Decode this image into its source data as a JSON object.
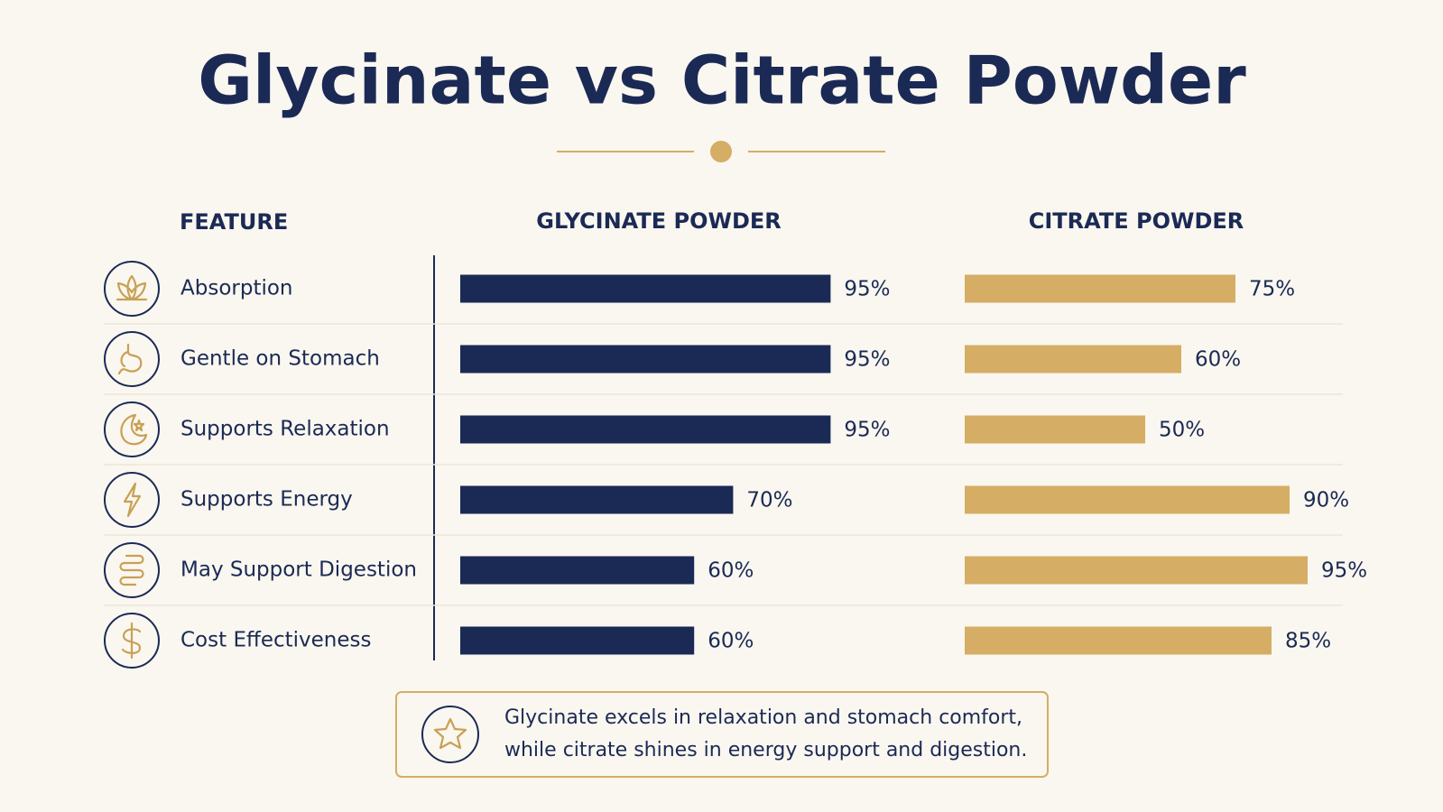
{
  "chart_data": {
    "type": "bar",
    "orientation": "horizontal",
    "title": "Glycinate vs Citrate Powder",
    "category_header": "FEATURE",
    "categories": [
      "Absorption",
      "Gentle on Stomach",
      "Supports Relaxation",
      "Supports Energy",
      "May Support Digestion",
      "Cost Effectiveness"
    ],
    "series": [
      {
        "name": "GLYCINATE POWDER",
        "color": "#1b2a55",
        "values": [
          95,
          95,
          95,
          70,
          60,
          60
        ],
        "value_labels": [
          "95%",
          "95%",
          "95%",
          "70%",
          "60%",
          "60%"
        ]
      },
      {
        "name": "CITRATE POWDER",
        "color": "#d5ad64",
        "values": [
          75,
          60,
          50,
          90,
          95,
          85
        ],
        "value_labels": [
          "75%",
          "60%",
          "50%",
          "90%",
          "95%",
          "85%"
        ]
      }
    ],
    "note": "Glycinate excels in relaxation and stomach comfort, while citrate shines in energy support and digestion."
  }
}
